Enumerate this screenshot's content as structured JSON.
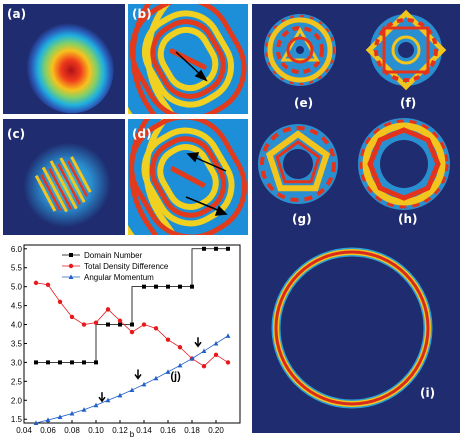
{
  "panels": {
    "a": {
      "label": "(a)"
    },
    "b": {
      "label": "(b)"
    },
    "c": {
      "label": "(c)"
    },
    "d": {
      "label": "(d)"
    },
    "e": {
      "label": "(e)"
    },
    "f": {
      "label": "(f)"
    },
    "g": {
      "label": "(g)"
    },
    "h": {
      "label": "(h)"
    },
    "i": {
      "label": "(i)"
    }
  },
  "chart_data": {
    "type": "line",
    "xlabel": "b",
    "xlim": [
      0.04,
      0.22
    ],
    "ylim": [
      1.4,
      6.1
    ],
    "xticks": [
      "0.04",
      "0.06",
      "0.08",
      "0.10",
      "0.12",
      "0.14",
      "0.16",
      "0.18",
      "0.20"
    ],
    "yticks": [
      "1.5",
      "2.0",
      "2.5",
      "3.0",
      "3.5",
      "4.0",
      "4.5",
      "5.0",
      "5.5",
      "6.0"
    ],
    "annotation": "(j)",
    "legend_position": "top-center",
    "series": [
      {
        "name": "Domain Number",
        "color": "#000000",
        "marker": "square",
        "x": [
          0.05,
          0.06,
          0.07,
          0.08,
          0.09,
          0.1,
          0.11,
          0.12,
          0.13,
          0.14,
          0.15,
          0.16,
          0.17,
          0.18,
          0.19,
          0.2,
          0.21
        ],
        "y": [
          3,
          3,
          3,
          3,
          3,
          3,
          4,
          4,
          4,
          5,
          5,
          5,
          5,
          5,
          6,
          6,
          6
        ]
      },
      {
        "name": "Total Density Difference",
        "color": "#e8191c",
        "marker": "circle",
        "x": [
          0.05,
          0.06,
          0.07,
          0.08,
          0.09,
          0.1,
          0.11,
          0.12,
          0.13,
          0.14,
          0.15,
          0.16,
          0.17,
          0.18,
          0.19,
          0.2,
          0.21
        ],
        "y": [
          5.1,
          5.05,
          4.6,
          4.2,
          4.0,
          4.05,
          4.4,
          4.1,
          3.8,
          4.0,
          3.9,
          3.6,
          3.4,
          3.1,
          2.9,
          3.2,
          3.0
        ]
      },
      {
        "name": "Angular Momentum",
        "color": "#2060c8",
        "marker": "triangle",
        "x": [
          0.05,
          0.06,
          0.07,
          0.08,
          0.09,
          0.1,
          0.11,
          0.12,
          0.13,
          0.14,
          0.15,
          0.16,
          0.17,
          0.18,
          0.19,
          0.2,
          0.21
        ],
        "y": [
          1.4,
          1.48,
          1.56,
          1.65,
          1.75,
          1.87,
          2.0,
          2.13,
          2.27,
          2.42,
          2.58,
          2.75,
          2.92,
          3.1,
          3.3,
          3.5,
          3.7
        ]
      }
    ],
    "arrows": [
      {
        "x": 0.105,
        "y": 1.95
      },
      {
        "x": 0.135,
        "y": 2.55
      },
      {
        "x": 0.185,
        "y": 3.4
      }
    ]
  }
}
